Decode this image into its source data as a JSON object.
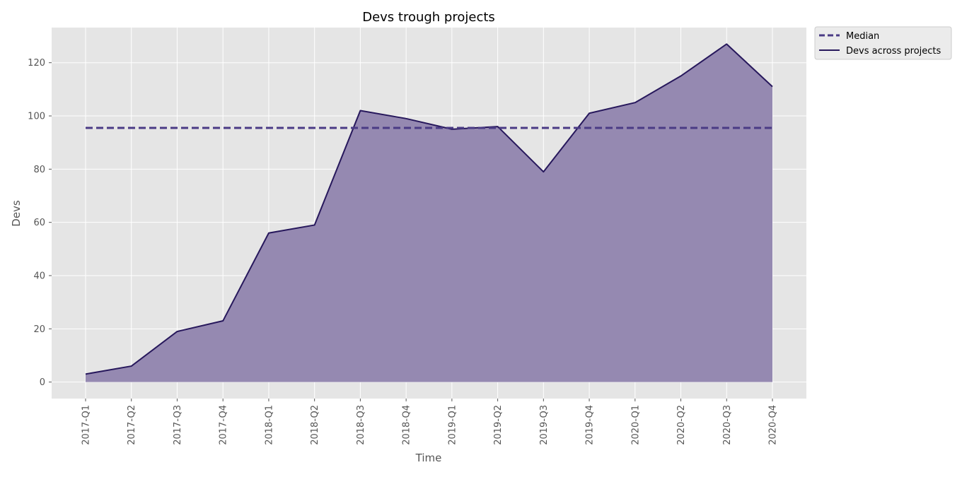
{
  "chart_data": {
    "type": "area",
    "title": "Devs trough projects",
    "xlabel": "Time",
    "ylabel": "Devs",
    "categories": [
      "2017-Q1",
      "2017-Q2",
      "2017-Q3",
      "2017-Q4",
      "2018-Q1",
      "2018-Q2",
      "2018-Q3",
      "2018-Q4",
      "2019-Q1",
      "2019-Q2",
      "2019-Q3",
      "2019-Q4",
      "2020-Q1",
      "2020-Q2",
      "2020-Q3",
      "2020-Q4"
    ],
    "series": [
      {
        "name": "Devs across projects",
        "values": [
          3,
          6,
          19,
          23,
          56,
          59,
          102,
          99,
          95,
          96,
          79,
          101,
          105,
          115,
          127,
          111
        ],
        "line_color": "#27185c",
        "fill_color": "#9589b1"
      },
      {
        "name": "Median",
        "values": [
          95.5,
          95.5,
          95.5,
          95.5,
          95.5,
          95.5,
          95.5,
          95.5,
          95.5,
          95.5,
          95.5,
          95.5,
          95.5,
          95.5,
          95.5,
          95.5
        ],
        "style": "dashed",
        "line_color": "#4a3b85"
      }
    ],
    "yticks": [
      0,
      20,
      40,
      60,
      80,
      100,
      120
    ],
    "ylim": [
      -6.2,
      133.2
    ],
    "grid": true,
    "legend_placement": "outside top-right",
    "plot_background": "#e5e5e5",
    "grid_color": "#ffffff"
  }
}
